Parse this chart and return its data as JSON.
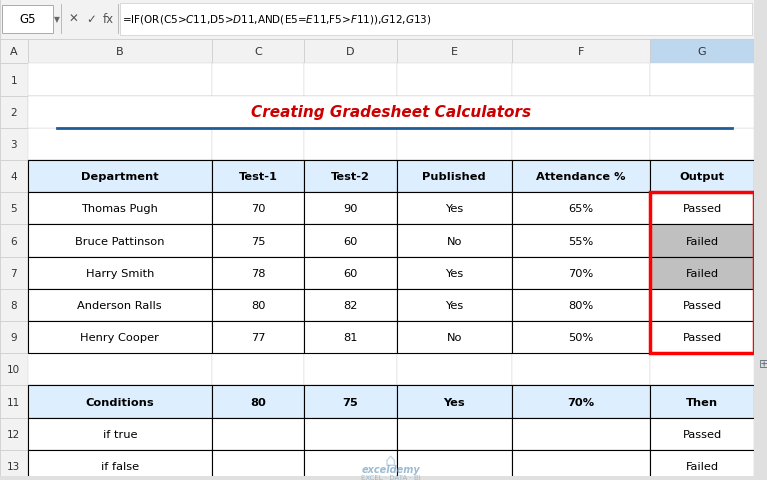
{
  "title": "Creating Gradesheet Calculators",
  "title_color": "#CC0000",
  "formula_bar_text": "=IF(OR(C5>$C$11,D5>$D$11,AND(E5=$E$11,F5>$F$11)),$G$12,$G$13)",
  "cell_ref": "G5",
  "header_row": [
    "Department",
    "Test-1",
    "Test-2",
    "Published",
    "Attendance %",
    "Output"
  ],
  "data_rows": [
    [
      "Thomas Pugh",
      "70",
      "90",
      "Yes",
      "65%",
      "Passed"
    ],
    [
      "Bruce Pattinson",
      "75",
      "60",
      "No",
      "55%",
      "Failed"
    ],
    [
      "Harry Smith",
      "78",
      "60",
      "Yes",
      "70%",
      "Failed"
    ],
    [
      "Anderson Ralls",
      "80",
      "82",
      "Yes",
      "80%",
      "Passed"
    ],
    [
      "Henry Cooper",
      "77",
      "81",
      "No",
      "50%",
      "Passed"
    ]
  ],
  "conditions_header": [
    "Conditions",
    "80",
    "75",
    "Yes",
    "70%",
    "Then"
  ],
  "conditions_rows": [
    [
      "if true",
      "",
      "",
      "",
      "",
      "Passed"
    ],
    [
      "if false",
      "",
      "",
      "",
      "",
      "Failed"
    ]
  ],
  "output_passed_bg": "#FFFFFF",
  "output_failed_bg": "#C0C0C0",
  "header_bg": "#DDEEFF",
  "col_widths_raw": [
    1.6,
    0.8,
    0.8,
    1.0,
    1.2,
    0.9
  ],
  "col_header_letters": [
    "A",
    "B",
    "C",
    "D",
    "E",
    "F",
    "G"
  ],
  "row_numbers": [
    "1",
    "2",
    "3",
    "4",
    "5",
    "6",
    "7",
    "8",
    "9",
    "10",
    "11",
    "12",
    "13"
  ]
}
